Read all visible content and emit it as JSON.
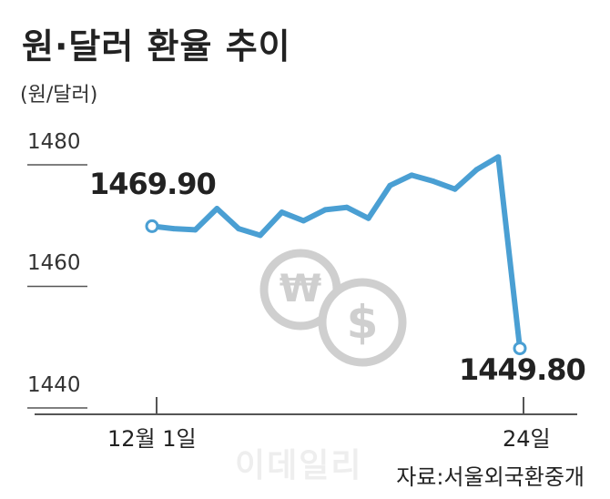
{
  "header": {
    "title": "원·달러 환율 추이",
    "unit": "(원/달러)"
  },
  "colors": {
    "line": "#4a9fd3",
    "axis": "#555555",
    "coin": "#cfcfcf"
  },
  "icons": [
    "won-coin-icon",
    "dollar-coin-icon"
  ],
  "footer": {
    "watermark": "이데일리",
    "source": "자료:서울외국환중개"
  },
  "chart_data": {
    "type": "line",
    "title": "원·달러 환율 추이",
    "ylabel": "(원/달러)",
    "ylim": [
      1440,
      1484
    ],
    "yticks": [
      "1480",
      "1460",
      "1440"
    ],
    "xtick_labels": [
      "12월 1일",
      "24일"
    ],
    "grid": false,
    "series": [
      {
        "values": [
          1469.9,
          1469.5,
          1469.3,
          1472.8,
          1469.5,
          1468.4,
          1472.2,
          1470.8,
          1472.6,
          1473.0,
          1471.2,
          1476.6,
          1478.3,
          1477.3,
          1476.0,
          1479.2,
          1481.3,
          1449.8
        ]
      }
    ],
    "annotations": [
      {
        "index": 0,
        "label": "1469.90"
      },
      {
        "index": 17,
        "label": "1449.80"
      }
    ]
  }
}
